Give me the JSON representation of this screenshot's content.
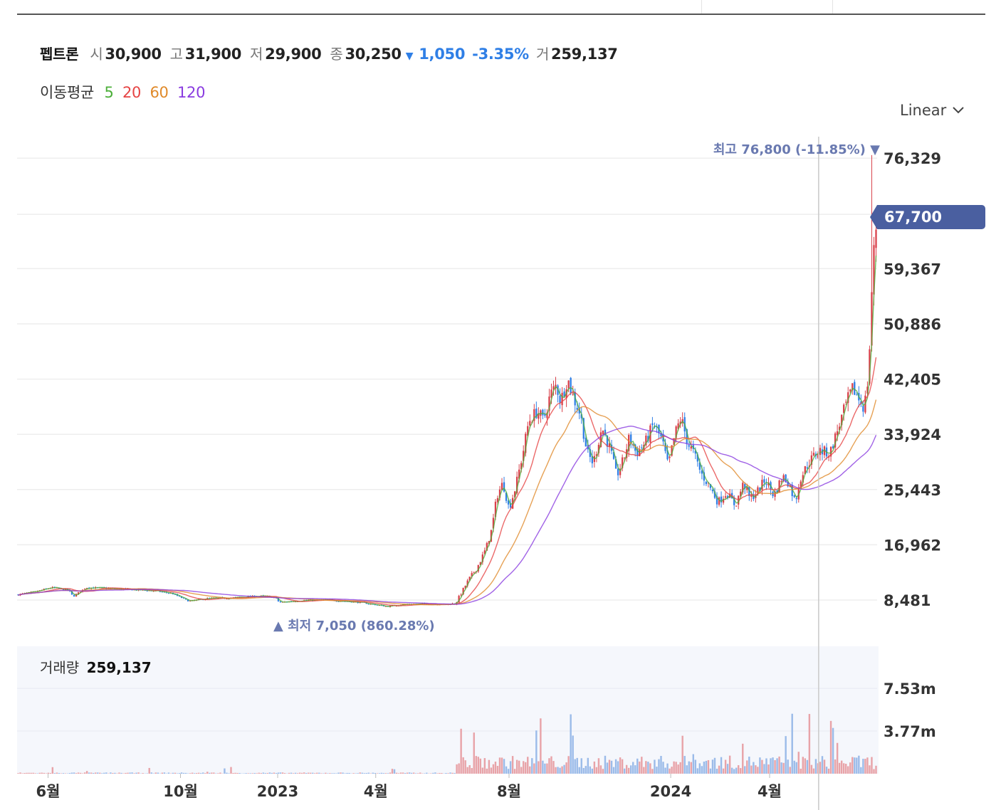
{
  "header": {
    "stock_name": "펩트론",
    "open_label": "시",
    "open": "30,900",
    "high_label": "고",
    "high": "31,900",
    "low_label": "저",
    "low": "29,900",
    "close_label": "종",
    "close": "30,250",
    "change": "1,050",
    "change_pct": "-3.35%",
    "volume_label": "거",
    "volume": "259,137",
    "change_color": "#2f7fe6"
  },
  "moving_average": {
    "title": "이동평균",
    "items": [
      {
        "label": "5",
        "color": "#4caf3a"
      },
      {
        "label": "20",
        "color": "#e64444"
      },
      {
        "label": "60",
        "color": "#e08a2a"
      },
      {
        "label": "120",
        "color": "#8a3ce0"
      }
    ]
  },
  "scale_selector": {
    "label": "Linear",
    "icon": "chevron-down-icon"
  },
  "volume_panel": {
    "title": "거래량",
    "value": "259,137"
  },
  "current_price_badge": "67,700",
  "annotations": {
    "high": {
      "label": "최고",
      "value": "76,800 (-11.85%)",
      "arrow": "▼"
    },
    "low": {
      "label": "최저",
      "value": "7,050 (860.28%)",
      "arrow": "▲"
    }
  },
  "colors": {
    "up": "#d9404a",
    "down": "#2f7fe6",
    "badge": "#4a5fa0",
    "annotation": "#6979b0"
  },
  "chart_data": {
    "type": "candlestick",
    "title": "",
    "y_scale": "linear",
    "y_ticks": [
      "76,329",
      "67,700",
      "59,367",
      "50,886",
      "42,405",
      "33,924",
      "25,443",
      "16,962",
      "8,481"
    ],
    "y_range": [
      5500,
      81000
    ],
    "volume_ticks": [
      "7.53m",
      "3.77m"
    ],
    "volume_range": [
      0,
      11000000
    ],
    "x_ticks": [
      {
        "label": "6월",
        "t": 0.036
      },
      {
        "label": "10월",
        "t": 0.19
      },
      {
        "label": "2023",
        "t": 0.303
      },
      {
        "label": "4월",
        "t": 0.417
      },
      {
        "label": "8월",
        "t": 0.572
      },
      {
        "label": "2024",
        "t": 0.76
      },
      {
        "label": "4월",
        "t": 0.875
      }
    ],
    "price_path": [
      [
        0.0,
        9300
      ],
      [
        0.02,
        9700
      ],
      [
        0.04,
        10400
      ],
      [
        0.06,
        10000
      ],
      [
        0.065,
        9000
      ],
      [
        0.08,
        10400
      ],
      [
        0.1,
        10300
      ],
      [
        0.13,
        10100
      ],
      [
        0.16,
        9900
      ],
      [
        0.18,
        9500
      ],
      [
        0.19,
        8900
      ],
      [
        0.2,
        8300
      ],
      [
        0.22,
        8700
      ],
      [
        0.25,
        8800
      ],
      [
        0.28,
        9100
      ],
      [
        0.3,
        8900
      ],
      [
        0.305,
        8100
      ],
      [
        0.33,
        8400
      ],
      [
        0.36,
        8500
      ],
      [
        0.4,
        8100
      ],
      [
        0.43,
        7500
      ],
      [
        0.45,
        7800
      ],
      [
        0.48,
        7900
      ],
      [
        0.5,
        7800
      ],
      [
        0.51,
        8000
      ],
      [
        0.515,
        9200
      ],
      [
        0.525,
        11600
      ],
      [
        0.535,
        13500
      ],
      [
        0.545,
        16300
      ],
      [
        0.552,
        19400
      ],
      [
        0.558,
        24500
      ],
      [
        0.565,
        26500
      ],
      [
        0.572,
        22500
      ],
      [
        0.58,
        26000
      ],
      [
        0.588,
        31000
      ],
      [
        0.595,
        36000
      ],
      [
        0.605,
        37500
      ],
      [
        0.612,
        36000
      ],
      [
        0.62,
        40000
      ],
      [
        0.627,
        41500
      ],
      [
        0.632,
        39000
      ],
      [
        0.64,
        42500
      ],
      [
        0.647,
        39500
      ],
      [
        0.655,
        37000
      ],
      [
        0.663,
        31000
      ],
      [
        0.67,
        29500
      ],
      [
        0.68,
        35000
      ],
      [
        0.69,
        31500
      ],
      [
        0.697,
        27500
      ],
      [
        0.705,
        30000
      ],
      [
        0.712,
        33500
      ],
      [
        0.72,
        31000
      ],
      [
        0.73,
        32500
      ],
      [
        0.74,
        35500
      ],
      [
        0.75,
        33000
      ],
      [
        0.757,
        29000
      ],
      [
        0.765,
        34000
      ],
      [
        0.772,
        36500
      ],
      [
        0.78,
        32500
      ],
      [
        0.787,
        31000
      ],
      [
        0.795,
        28000
      ],
      [
        0.805,
        26000
      ],
      [
        0.815,
        23500
      ],
      [
        0.825,
        25000
      ],
      [
        0.835,
        23000
      ],
      [
        0.845,
        26500
      ],
      [
        0.852,
        24000
      ],
      [
        0.86,
        25000
      ],
      [
        0.87,
        27000
      ],
      [
        0.88,
        24500
      ],
      [
        0.89,
        27500
      ],
      [
        0.897,
        26500
      ],
      [
        0.905,
        23500
      ],
      [
        0.91,
        27000
      ],
      [
        0.92,
        29500
      ],
      [
        0.932,
        31500
      ],
      [
        0.945,
        31000
      ],
      [
        0.955,
        35000
      ],
      [
        0.965,
        39000
      ],
      [
        0.972,
        41000
      ],
      [
        0.978,
        39500
      ],
      [
        0.985,
        38000
      ],
      [
        0.99,
        43000
      ],
      [
        0.995,
        60000
      ],
      [
        1.0,
        67700
      ]
    ],
    "high_point": {
      "t": 0.997,
      "value": 76800
    },
    "low_point": {
      "t": 0.43,
      "value": 7050
    },
    "crosshair_t": 0.932,
    "series": [
      {
        "name": "5",
        "color": "#4caf3a",
        "lag": 3
      },
      {
        "name": "20",
        "color": "#e64444",
        "lag": 12
      },
      {
        "name": "60",
        "color": "#e08a2a",
        "lag": 28
      },
      {
        "name": "120",
        "color": "#8a3ce0",
        "lag": 50
      }
    ]
  }
}
